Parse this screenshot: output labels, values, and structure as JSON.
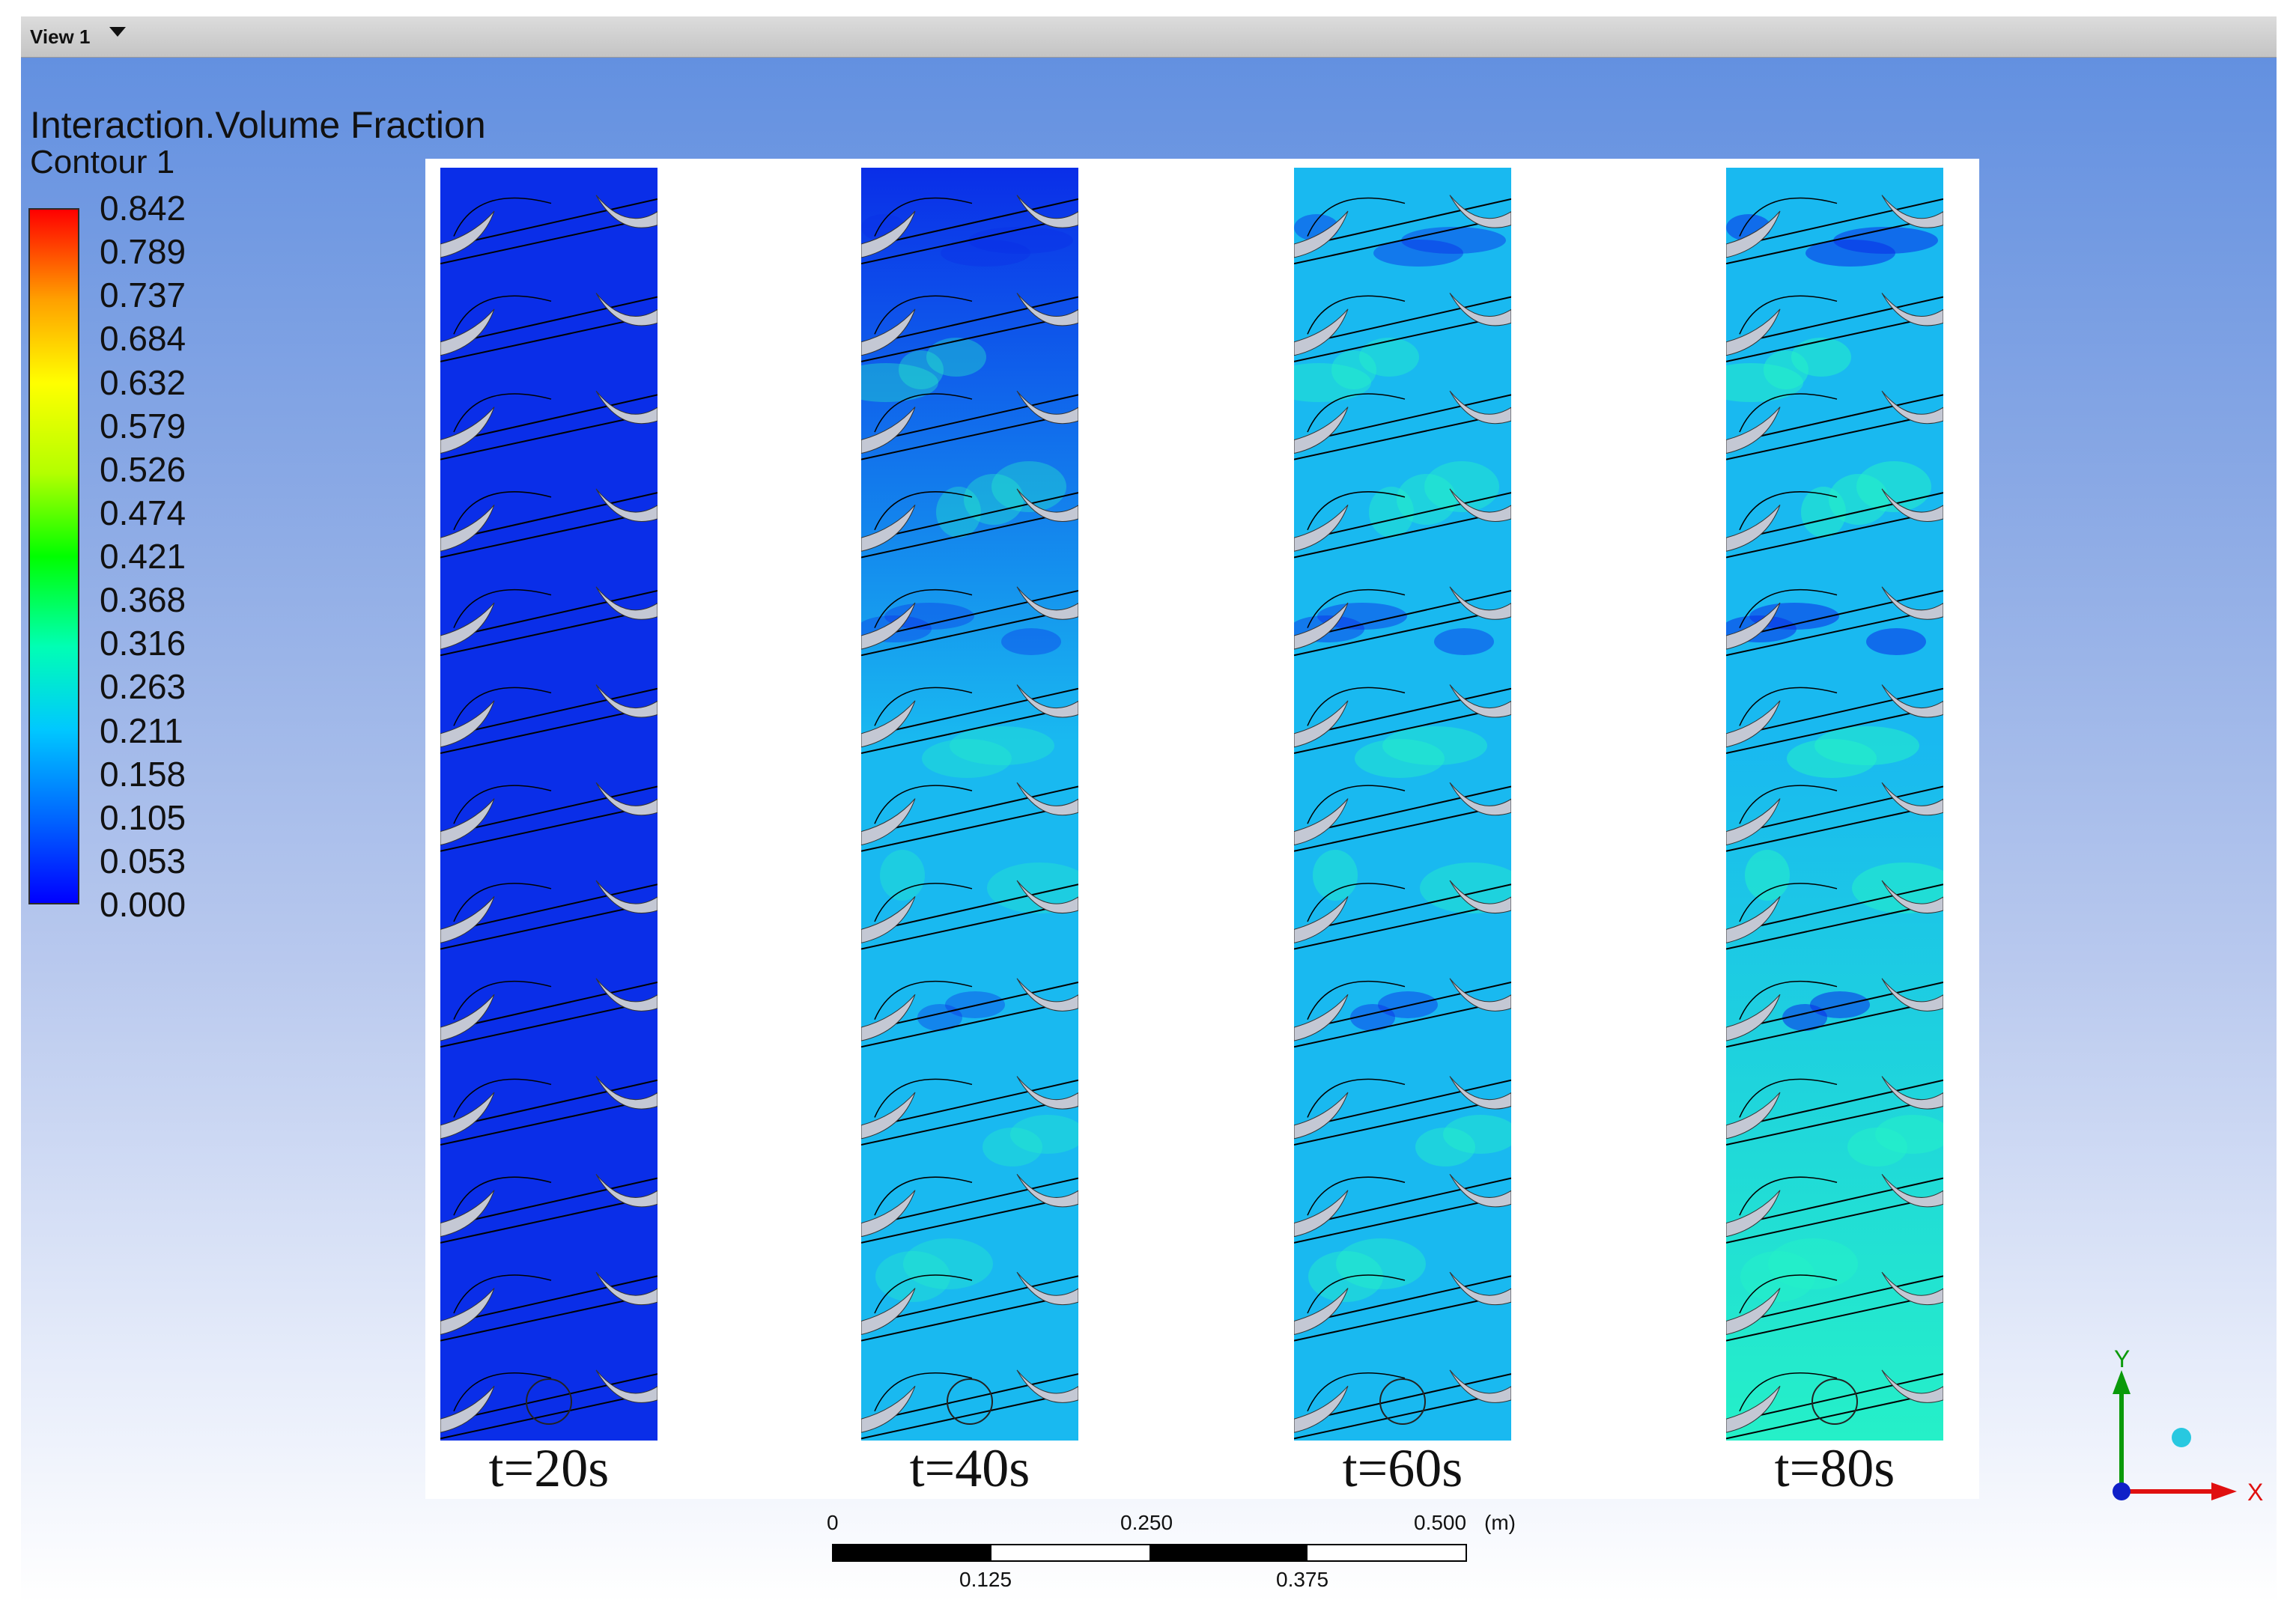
{
  "view": {
    "title": "View 1"
  },
  "legend": {
    "title": "Interaction.Volume Fraction",
    "subtitle": "Contour 1",
    "ticks": [
      "0.842",
      "0.789",
      "0.737",
      "0.684",
      "0.632",
      "0.579",
      "0.526",
      "0.474",
      "0.421",
      "0.368",
      "0.316",
      "0.263",
      "0.211",
      "0.158",
      "0.105",
      "0.053",
      "0.000"
    ],
    "colormap": [
      "#0000ff",
      "#00c8ff",
      "#00ff00",
      "#ffff00",
      "#ff0000"
    ]
  },
  "panels": [
    {
      "label": "t=20s",
      "level": 0.0
    },
    {
      "label": "t=40s",
      "level": 0.35
    },
    {
      "label": "t=60s",
      "level": 0.6
    },
    {
      "label": "t=80s",
      "level": 0.85
    }
  ],
  "scale": {
    "top_labels": [
      "0",
      "0.250",
      "0.500"
    ],
    "unit": "(m)",
    "bottom_labels": [
      "0.125",
      "0.375"
    ]
  },
  "axes": {
    "y_label": "Y",
    "x_label": "X"
  },
  "colors": {
    "background_top": "#5f8ee0",
    "background_bottom": "#ffffff",
    "low": "#0a2ee8",
    "mid": "#19b9f0",
    "high": "#25f0c8",
    "blade": "#c4c8d4"
  }
}
